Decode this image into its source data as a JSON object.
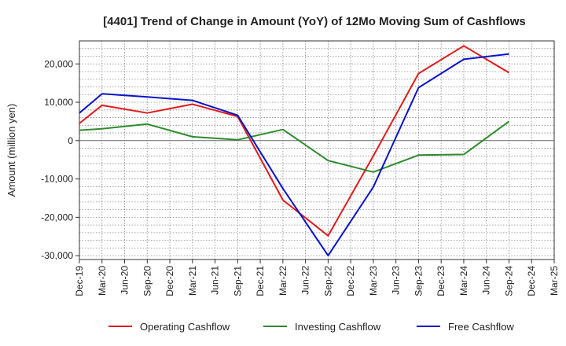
{
  "chart_data": {
    "type": "line",
    "title": "[4401]  Trend of Change in Amount (YoY) of 12Mo Moving Sum of Cashflows",
    "xlabel": "",
    "ylabel": "Amount (million yen)",
    "ylim": [
      -31000,
      26000
    ],
    "yticks": [
      20000,
      10000,
      0,
      -10000,
      -20000,
      -30000
    ],
    "ytick_labels": [
      "20,000",
      "10,000",
      "0",
      "-10,000",
      "-20,000",
      "-30,000"
    ],
    "categories": [
      "Dec-19",
      "Mar-20",
      "Jun-20",
      "Sep-20",
      "Dec-20",
      "Mar-21",
      "Jun-21",
      "Sep-21",
      "Dec-21",
      "Mar-22",
      "Jun-22",
      "Sep-22",
      "Dec-22",
      "Mar-23",
      "Jun-23",
      "Sep-23",
      "Dec-23",
      "Mar-24",
      "Jun-24",
      "Sep-24",
      "Dec-24",
      "Mar-25"
    ],
    "grid": true,
    "legend_position": "bottom",
    "series": [
      {
        "name": "Operating Cashflow",
        "color": "#e31a1c",
        "values": [
          4500,
          9200,
          null,
          7200,
          null,
          9500,
          null,
          6300,
          null,
          -15500,
          null,
          -24800,
          null,
          -4000,
          null,
          17500,
          null,
          24700,
          null,
          17700,
          null,
          null
        ]
      },
      {
        "name": "Investing Cashflow",
        "color": "#2e8b2e",
        "values": [
          2700,
          3100,
          null,
          4300,
          null,
          1000,
          null,
          200,
          null,
          2900,
          null,
          -5200,
          null,
          -8200,
          null,
          -3800,
          null,
          -3600,
          null,
          5000,
          null,
          null
        ]
      },
      {
        "name": "Free Cashflow",
        "color": "#0a14c8",
        "values": [
          7200,
          12200,
          null,
          11400,
          null,
          10500,
          null,
          6600,
          null,
          -12500,
          null,
          -30000,
          null,
          -12100,
          null,
          13800,
          null,
          21200,
          null,
          22600,
          null,
          null
        ]
      }
    ]
  }
}
